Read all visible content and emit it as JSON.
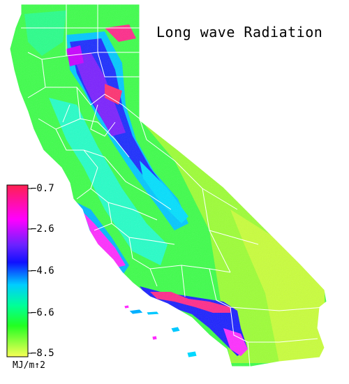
{
  "title": "Long wave Radiation",
  "legend": {
    "unit": "MJ/m↑2",
    "ticks": [
      "−0.7",
      "−2.6",
      "−4.6",
      "−6.6",
      "−8.5"
    ],
    "color_stops": [
      "#ff2050",
      "#ff00ff",
      "#6a22ff",
      "#1010ff",
      "#00ccff",
      "#00ff99",
      "#22ff22",
      "#e6ff33",
      "#f8ff55"
    ]
  },
  "colors": {
    "high_elev": "#ff2a7a",
    "mountain": "#5a1fff",
    "foothill": "#00d8ff",
    "valley": "#33ff55",
    "desert": "#b8ff3a",
    "coast": "#ff3cff",
    "boundary": "#ffffff"
  }
}
